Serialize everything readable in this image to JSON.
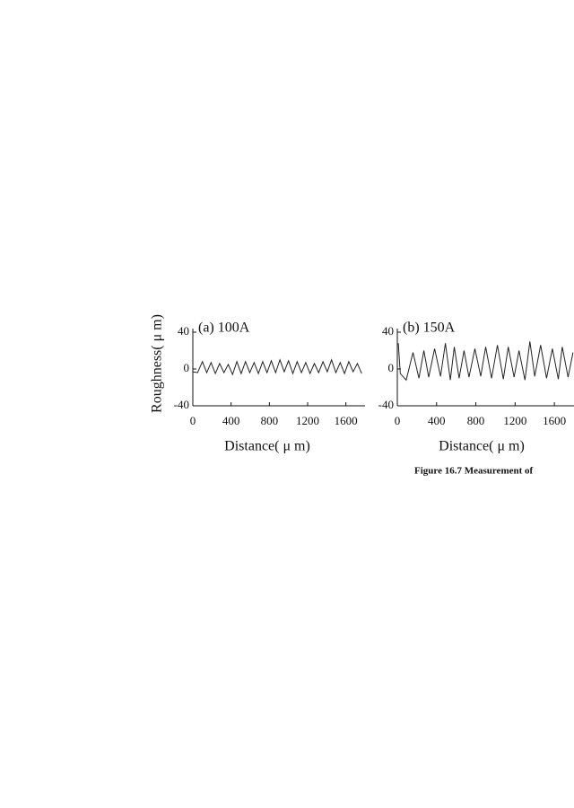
{
  "chart_data": [
    {
      "type": "line",
      "title": "(a) 100A",
      "ylabel": "Roughness( μ m)",
      "xlabel": "Distance( μ m)",
      "x": [
        0,
        50,
        100,
        145,
        190,
        235,
        280,
        325,
        370,
        415,
        460,
        505,
        550,
        595,
        640,
        685,
        730,
        775,
        820,
        865,
        910,
        955,
        1000,
        1045,
        1090,
        1135,
        1180,
        1225,
        1270,
        1315,
        1360,
        1405,
        1450,
        1495,
        1540,
        1585,
        1630,
        1675,
        1720,
        1765
      ],
      "series": [
        {
          "color": "#222222",
          "values": [
            -3,
            -4,
            8,
            -4,
            7,
            -5,
            6,
            -4,
            5,
            -6,
            8,
            -5,
            8,
            -4,
            7,
            -5,
            8,
            -4,
            9,
            -4,
            10,
            -3,
            9,
            -5,
            8,
            -4,
            7,
            -5,
            6,
            -4,
            8,
            -3,
            10,
            -4,
            7,
            -5,
            8,
            -3,
            6,
            -5
          ]
        }
      ],
      "xlim": [
        0,
        1800
      ],
      "ylim": [
        -40,
        40
      ],
      "xticks": [
        0,
        400,
        800,
        1200,
        1600
      ],
      "yticks": [
        -40,
        0,
        40
      ]
    },
    {
      "type": "line",
      "title": "(b) 150A",
      "xlabel": "Distance( μ m)",
      "x": [
        10,
        30,
        90,
        160,
        220,
        270,
        320,
        380,
        440,
        490,
        540,
        580,
        630,
        680,
        730,
        790,
        850,
        900,
        960,
        1020,
        1080,
        1130,
        1190,
        1240,
        1300,
        1350,
        1400,
        1460,
        1520,
        1580,
        1640,
        1680,
        1740,
        1790
      ],
      "series": [
        {
          "color": "#222222",
          "values": [
            28,
            -5,
            -12,
            18,
            -10,
            20,
            -9,
            22,
            -8,
            28,
            -12,
            24,
            -10,
            20,
            -9,
            22,
            -8,
            24,
            -10,
            26,
            -11,
            24,
            -9,
            20,
            -12,
            30,
            -8,
            26,
            -10,
            22,
            -11,
            24,
            -9,
            18
          ]
        }
      ],
      "xlim": [
        0,
        1800
      ],
      "ylim": [
        -40,
        40
      ],
      "xticks": [
        0,
        400,
        800,
        1200,
        1600
      ],
      "yticks": [
        -40,
        0,
        40
      ]
    }
  ],
  "caption": "Figure 16.7  Measurement of"
}
